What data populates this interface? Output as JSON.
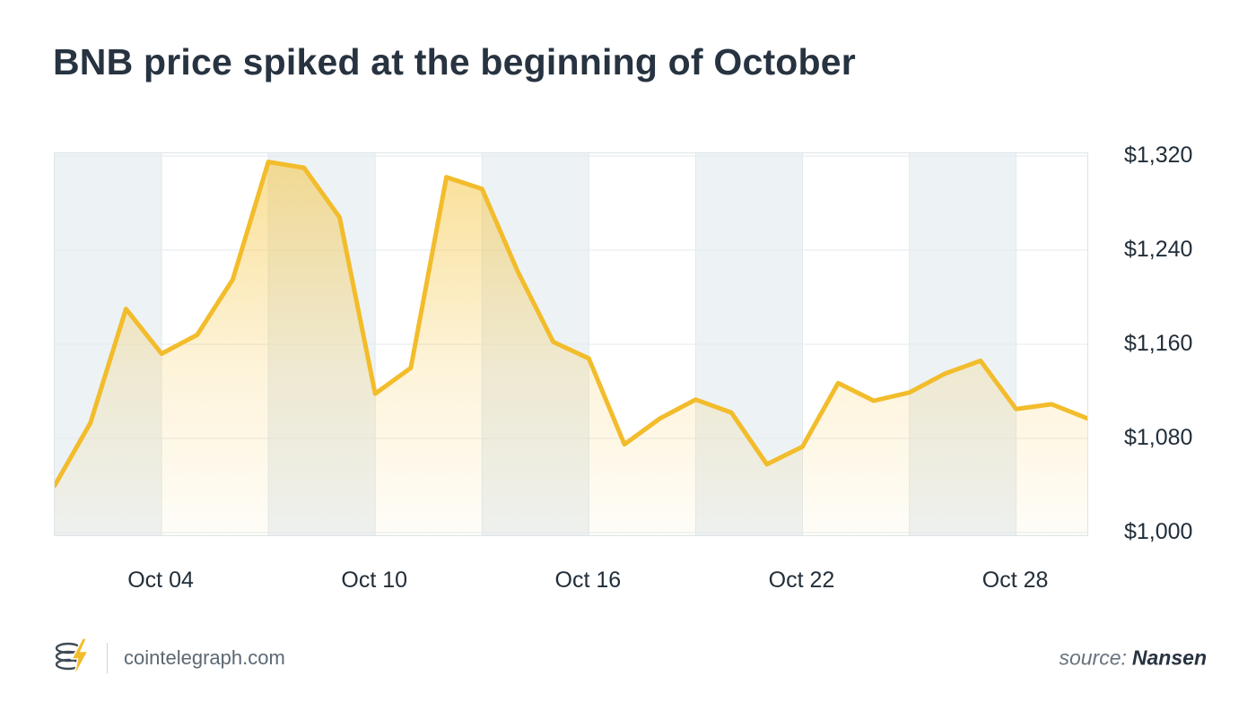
{
  "footer": {
    "brand": "cointelegraph.com",
    "source_label": "source:",
    "source_value": "Nansen"
  },
  "colors": {
    "line": "#F2BC2B",
    "fill_top": "#F5C542",
    "stripe": "#EDF2F5",
    "grid": "#E3E9ED",
    "title_text": "#273340",
    "axis_text": "#222E39",
    "footer_text": "#5C6873"
  },
  "chart_data": {
    "type": "area",
    "title": "BNB price spiked at the beginning of October",
    "series_name": "BNB price (USD)",
    "x_unit": "day of October",
    "x": [
      1,
      2,
      3,
      4,
      5,
      6,
      7,
      8,
      9,
      10,
      11,
      12,
      13,
      14,
      15,
      16,
      17,
      18,
      19,
      20,
      21,
      22,
      23,
      24,
      25,
      26,
      27,
      28,
      29,
      30
    ],
    "values": [
      1040,
      1093,
      1190,
      1152,
      1168,
      1215,
      1315,
      1310,
      1268,
      1118,
      1140,
      1302,
      1292,
      1222,
      1162,
      1148,
      1075,
      1097,
      1113,
      1102,
      1058,
      1073,
      1127,
      1112,
      1119,
      1135,
      1146,
      1105,
      1109,
      1097
    ],
    "ylim": [
      1000,
      1320
    ],
    "grid": true,
    "legend": false,
    "y_axis": [
      {
        "value": 1320,
        "label": "$1,320"
      },
      {
        "value": 1240,
        "label": "$1,240"
      },
      {
        "value": 1160,
        "label": "$1,160"
      },
      {
        "value": 1080,
        "label": "$1,080"
      },
      {
        "value": 1000,
        "label": "$1,000"
      }
    ],
    "x_axis": [
      {
        "index": 3,
        "label": "Oct 04"
      },
      {
        "index": 9,
        "label": "Oct 10"
      },
      {
        "index": 15,
        "label": "Oct 16"
      },
      {
        "index": 21,
        "label": "Oct 22"
      },
      {
        "index": 27,
        "label": "Oct 28"
      }
    ],
    "stripe_bands": [
      [
        0,
        3
      ],
      [
        6,
        9
      ],
      [
        12,
        15
      ],
      [
        18,
        21
      ],
      [
        24,
        27
      ]
    ],
    "v_grid_indices": [
      3,
      6,
      9,
      12,
      15,
      18,
      21,
      24,
      27
    ]
  }
}
